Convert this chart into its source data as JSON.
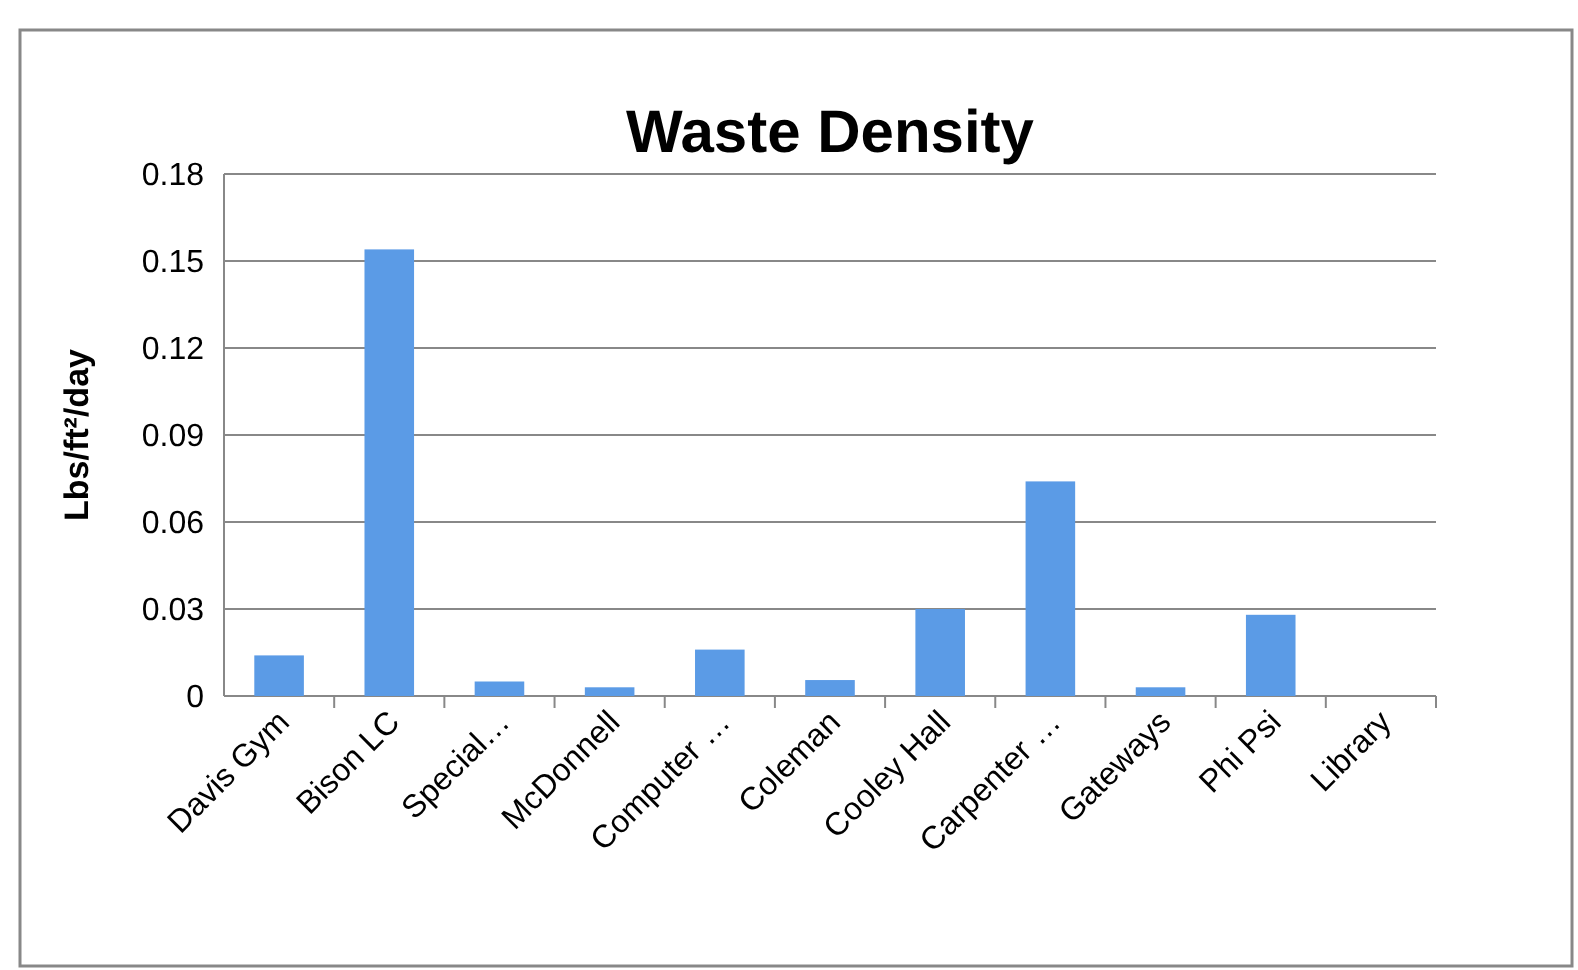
{
  "chart_data": {
    "type": "bar",
    "title": "Waste Density",
    "ylabel": "Lbs/ft²/day",
    "categories": [
      "Davis Gym",
      "Bison LC",
      "Special…",
      "McDonnell",
      "Computer …",
      "Coleman",
      "Cooley Hall",
      "Carpenter …",
      "Gateways",
      "Phi Psi",
      "Library"
    ],
    "values": [
      0.014,
      0.154,
      0.005,
      0.003,
      0.016,
      0.0055,
      0.03,
      0.074,
      0.003,
      0.028,
      0
    ],
    "color": "#5b9be6",
    "ylim": [
      0,
      0.18
    ],
    "yticks": [
      0,
      0.03,
      0.06,
      0.09,
      0.12,
      0.15,
      0.18
    ],
    "grid": "y"
  }
}
